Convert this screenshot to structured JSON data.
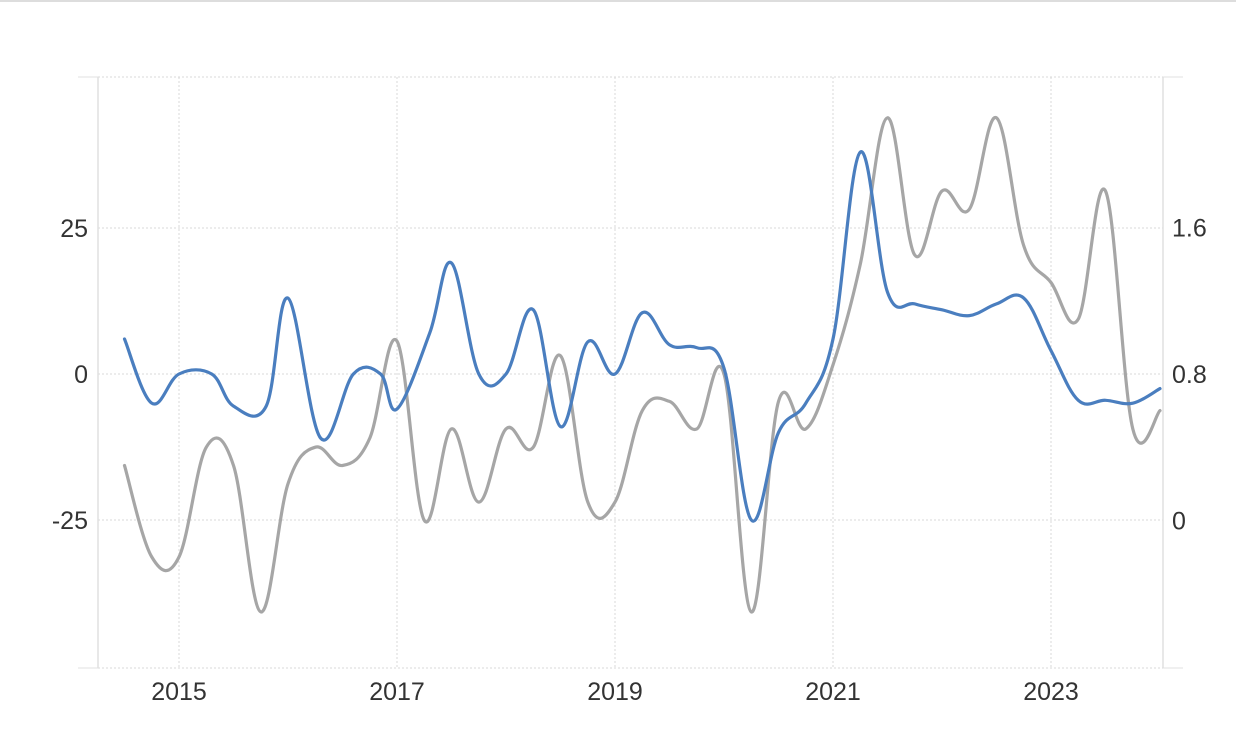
{
  "chart_data": {
    "type": "line",
    "title": "",
    "xlabel": "",
    "ylabel": "",
    "x_ticks": [
      "2015",
      "2017",
      "2019",
      "2021",
      "2023"
    ],
    "xlim": [
      2014.25,
      2024.0
    ],
    "y_left": {
      "ticks": [
        "25",
        "0",
        "-25"
      ],
      "tick_values": [
        25,
        0,
        -25
      ],
      "ylim": [
        -50,
        51
      ]
    },
    "y_right": {
      "ticks": [
        "1.6",
        "0.8",
        "0"
      ],
      "tick_values": [
        1.6,
        0.8,
        0
      ],
      "ylim": [
        -0.8,
        2.41
      ]
    },
    "grid": true,
    "legend": "none",
    "series": [
      {
        "color": "#4a7ebf",
        "axis": "left",
        "x": [
          2014.5,
          2014.75,
          2015.0,
          2015.3,
          2015.5,
          2015.8,
          2016.0,
          2016.3,
          2016.6,
          2016.85,
          2017.0,
          2017.3,
          2017.5,
          2017.75,
          2018.0,
          2018.25,
          2018.5,
          2018.75,
          2019.0,
          2019.25,
          2019.5,
          2019.75,
          2020.0,
          2020.25,
          2020.5,
          2020.75,
          2021.0,
          2021.25,
          2021.5,
          2021.75,
          2022.0,
          2022.25,
          2022.5,
          2022.75,
          2023.0,
          2023.25,
          2023.5,
          2023.75,
          2024.0
        ],
        "y": [
          6,
          -5,
          0,
          0,
          -5.5,
          -5.5,
          13,
          -11,
          0,
          0,
          -6,
          7,
          19,
          0,
          0,
          11,
          -9,
          5.5,
          0,
          10.5,
          5,
          4.5,
          1,
          -25,
          -10,
          -5,
          6,
          38,
          14,
          12,
          11,
          10,
          12,
          13,
          4,
          -4.5,
          -4.5,
          -5,
          -2.5
        ]
      },
      {
        "color": "#a6a6a6",
        "axis": "right",
        "x": [
          2014.5,
          2014.75,
          2015.0,
          2015.25,
          2015.5,
          2015.75,
          2016.0,
          2016.25,
          2016.5,
          2016.75,
          2017.0,
          2017.25,
          2017.5,
          2017.75,
          2018.0,
          2018.25,
          2018.5,
          2018.75,
          2019.0,
          2019.25,
          2019.5,
          2019.75,
          2020.0,
          2020.25,
          2020.5,
          2020.75,
          2021.0,
          2021.25,
          2021.5,
          2021.75,
          2022.0,
          2022.25,
          2022.5,
          2022.75,
          2023.0,
          2023.25,
          2023.5,
          2023.75,
          2024.0
        ],
        "y": [
          0.3,
          -0.2,
          -0.2,
          0.4,
          0.3,
          -0.5,
          0.2,
          0.4,
          0.3,
          0.45,
          0.98,
          0.0,
          0.5,
          0.1,
          0.5,
          0.4,
          0.9,
          0.1,
          0.1,
          0.6,
          0.65,
          0.5,
          0.8,
          -0.5,
          0.65,
          0.5,
          0.85,
          1.4,
          2.2,
          1.45,
          1.8,
          1.7,
          2.2,
          1.5,
          1.3,
          1.1,
          1.8,
          0.5,
          0.6
        ]
      }
    ]
  }
}
